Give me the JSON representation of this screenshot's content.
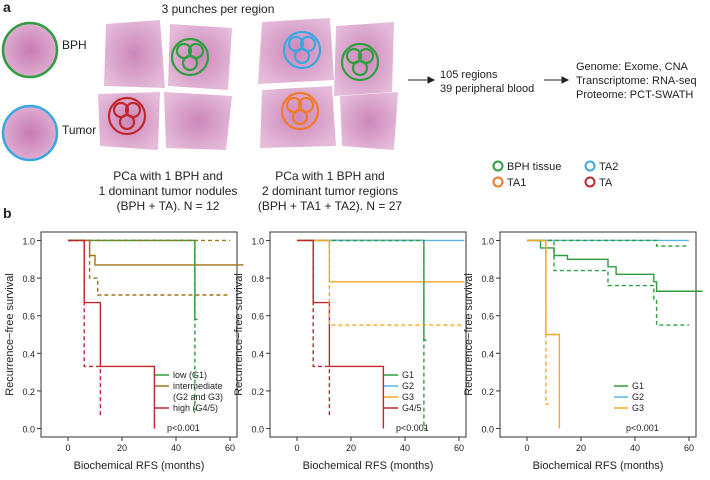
{
  "panel_a": {
    "label": "a",
    "punch_note": "3 punches per region",
    "tissue_labels": [
      "BPH",
      "Tumor"
    ],
    "captions": [
      [
        "PCa with 1 BPH and",
        "1 dominant tumor nodules",
        "(BPH + TA). N = 12"
      ],
      [
        "PCa with 1 BPH and",
        "2 dominant tumor regions",
        "(BPH + TA1 + TA2). N = 27"
      ]
    ],
    "summary": [
      "105 regions",
      "39 peripheral blood"
    ],
    "omics": [
      "Genome: Exome, CNA",
      "Transcriptome: RNA-seq",
      "Proteome: PCT-SWATH"
    ],
    "legend": [
      {
        "label": "BPH tissue",
        "color": "#2e9e3e"
      },
      {
        "label": "TA2",
        "color": "#3aa8e0"
      },
      {
        "label": "TA1",
        "color": "#f07a2a"
      },
      {
        "label": "TA",
        "color": "#c0272d"
      }
    ]
  },
  "panel_b": {
    "label": "b"
  },
  "chart_data": [
    {
      "type": "step",
      "ylabel": "Recurrence−free survival",
      "xlabel": "Biochemical RFS (months)",
      "annotation": "p<0.001",
      "xlim": [
        -10,
        62.6
      ],
      "ylim": [
        -0.045,
        1.045
      ],
      "xticks": [
        0,
        20,
        40,
        60
      ],
      "yticks": [
        {
          "value": 0,
          "label": "0.0"
        },
        {
          "value": 0.2,
          "label": "0.2"
        },
        {
          "value": 0.4,
          "label": "0.4"
        },
        {
          "value": 0.6,
          "label": "0.6"
        },
        {
          "value": 0.8,
          "label": "0.8"
        },
        {
          "value": 1,
          "label": "1.0"
        }
      ],
      "series": [
        {
          "name": "low (G1)",
          "color": "#2e9e3e",
          "dashed": false,
          "x": [
            0,
            47,
            48
          ],
          "values": [
            1,
            0.58,
            0.58
          ]
        },
        {
          "name": "intermediate\n(G2 and G3)",
          "color": "#a0731e",
          "dashed": false,
          "x": [
            0,
            8,
            10,
            65
          ],
          "values": [
            1,
            0.92,
            0.87,
            0.87
          ]
        },
        {
          "name": "high (G4/5)",
          "color": "#c0272d",
          "dashed": false,
          "x": [
            0,
            6,
            12,
            32
          ],
          "values": [
            1,
            0.67,
            0.33,
            0
          ]
        },
        {
          "color": "#2e9e3e",
          "dashed": true,
          "x": [
            0,
            47,
            48
          ],
          "values": [
            1,
            0.1,
            0.1
          ]
        },
        {
          "color": "#a0731e",
          "dashed": true,
          "x": [
            0,
            60
          ],
          "values": [
            1,
            1
          ]
        },
        {
          "color": "#a0731e",
          "dashed": true,
          "x": [
            0,
            8,
            11,
            60
          ],
          "values": [
            1,
            0.8,
            0.71,
            0.71
          ]
        },
        {
          "color": "#c0272d",
          "dashed": true,
          "x": [
            0,
            6,
            12
          ],
          "values": [
            1,
            0.33,
            0.07
          ]
        }
      ]
    },
    {
      "type": "step",
      "ylabel": "Recurrence−free survival",
      "xlabel": "Biochemical RFS (months)",
      "annotation": "p<0.001",
      "xlim": [
        -10,
        62.6
      ],
      "ylim": [
        -0.045,
        1.045
      ],
      "xticks": [
        0,
        20,
        40,
        60
      ],
      "yticks": [
        {
          "value": 0,
          "label": "0.0"
        },
        {
          "value": 0.2,
          "label": "0.2"
        },
        {
          "value": 0.4,
          "label": "0.4"
        },
        {
          "value": 0.6,
          "label": "0.6"
        },
        {
          "value": 0.8,
          "label": "0.8"
        },
        {
          "value": 1,
          "label": "1.0"
        }
      ],
      "series": [
        {
          "name": "G1",
          "color": "#2e9e3e",
          "dashed": false,
          "x": [
            0,
            47,
            48
          ],
          "values": [
            1,
            0.47,
            0.47
          ]
        },
        {
          "name": "G2",
          "color": "#5ab4e6",
          "dashed": false,
          "x": [
            0,
            62
          ],
          "values": [
            1,
            1
          ]
        },
        {
          "name": "G3",
          "color": "#f5a623",
          "dashed": false,
          "x": [
            0,
            12,
            62
          ],
          "values": [
            1,
            0.78,
            0.78
          ]
        },
        {
          "name": "G4/5",
          "color": "#c0272d",
          "dashed": false,
          "x": [
            0,
            6,
            12,
            32
          ],
          "values": [
            1,
            0.67,
            0.33,
            0
          ]
        },
        {
          "color": "#2e9e3e",
          "dashed": true,
          "x": [
            0,
            47,
            48
          ],
          "values": [
            1,
            0,
            0
          ]
        },
        {
          "color": "#f5a623",
          "dashed": true,
          "x": [
            0,
            12,
            62
          ],
          "values": [
            1,
            0.55,
            0.55
          ]
        },
        {
          "color": "#c0272d",
          "dashed": true,
          "x": [
            0,
            6,
            12
          ],
          "values": [
            1,
            0.33,
            0.07
          ]
        }
      ]
    },
    {
      "type": "step",
      "ylabel": "Recurrence−free survival",
      "xlabel": "Biochemical RFS (months)",
      "annotation": "p<0.001",
      "xlim": [
        -10,
        62.6
      ],
      "ylim": [
        -0.045,
        1.045
      ],
      "xticks": [
        0,
        20,
        40,
        60
      ],
      "yticks": [
        {
          "value": 0,
          "label": "0.0"
        },
        {
          "value": 0.2,
          "label": "0.2"
        },
        {
          "value": 0.4,
          "label": "0.4"
        },
        {
          "value": 0.6,
          "label": "0.6"
        },
        {
          "value": 0.8,
          "label": "0.8"
        },
        {
          "value": 1,
          "label": "1.0"
        }
      ],
      "series": [
        {
          "name": "G1",
          "color": "#2e9e3e",
          "dashed": false,
          "x": [
            0,
            5,
            10,
            15,
            30,
            33,
            47,
            48,
            65
          ],
          "values": [
            1,
            0.96,
            0.92,
            0.9,
            0.86,
            0.82,
            0.78,
            0.73,
            0.73
          ]
        },
        {
          "name": "G2",
          "color": "#5ab4e6",
          "dashed": false,
          "x": [
            0,
            60
          ],
          "values": [
            1,
            1
          ]
        },
        {
          "name": "G3",
          "color": "#f5a623",
          "dashed": false,
          "x": [
            0,
            7,
            12
          ],
          "values": [
            1,
            0.5,
            0
          ]
        },
        {
          "color": "#2e9e3e",
          "dashed": true,
          "x": [
            0,
            48,
            60
          ],
          "values": [
            1,
            0.97,
            0.97
          ]
        },
        {
          "color": "#2e9e3e",
          "dashed": true,
          "x": [
            0,
            10,
            30,
            47,
            48,
            60
          ],
          "values": [
            1,
            0.84,
            0.76,
            0.68,
            0.55,
            0.55
          ]
        },
        {
          "color": "#f5a623",
          "dashed": true,
          "x": [
            0,
            7,
            8
          ],
          "values": [
            1,
            0.13,
            0.13
          ]
        }
      ]
    }
  ]
}
